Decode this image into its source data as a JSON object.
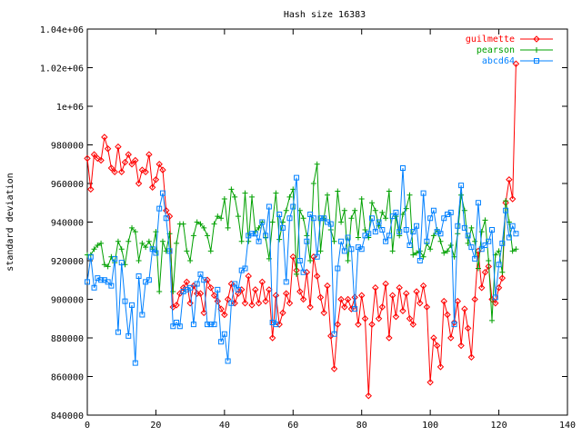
{
  "chart_data": {
    "type": "line",
    "title": "Hash size 16383",
    "xlabel": "",
    "ylabel": "standard deviation",
    "xlim": [
      0,
      140
    ],
    "ylim": [
      840000,
      1040000
    ],
    "x_ticks": [
      0,
      20,
      40,
      60,
      80,
      100,
      120,
      140
    ],
    "y_ticks": [
      840000,
      860000,
      880000,
      900000,
      920000,
      940000,
      960000,
      980000,
      1000000,
      1020000,
      1040000
    ],
    "y_tick_labels": [
      "840000",
      "860000",
      "880000",
      "900000",
      "920000",
      "940000",
      "960000",
      "980000",
      "1e+06",
      "1.02e+06",
      "1.04e+06"
    ],
    "grid": false,
    "legend_position": "top-right",
    "series": [
      {
        "name": "guilmette",
        "color": "#ff0000",
        "marker": "diamond",
        "x": [
          0,
          1,
          2,
          3,
          4,
          5,
          6,
          7,
          8,
          9,
          10,
          11,
          12,
          13,
          14,
          15,
          16,
          17,
          18,
          19,
          20,
          21,
          22,
          23,
          24,
          25,
          26,
          27,
          28,
          29,
          30,
          31,
          32,
          33,
          34,
          35,
          36,
          37,
          38,
          39,
          40,
          41,
          42,
          43,
          44,
          45,
          46,
          47,
          48,
          49,
          50,
          51,
          52,
          53,
          54,
          55,
          56,
          57,
          58,
          59,
          60,
          61,
          62,
          63,
          64,
          65,
          66,
          67,
          68,
          69,
          70,
          71,
          72,
          73,
          74,
          75,
          76,
          77,
          78,
          79,
          80,
          81,
          82,
          83,
          84,
          85,
          86,
          87,
          88,
          89,
          90,
          91,
          92,
          93,
          94,
          95,
          96,
          97,
          98,
          99,
          100,
          101,
          102,
          103,
          104,
          105,
          106,
          107,
          108,
          109,
          110,
          111,
          112,
          113,
          114,
          115,
          116,
          117,
          118,
          119,
          120,
          121,
          122,
          123,
          124,
          125
        ],
        "y": [
          973000,
          957000,
          975000,
          973000,
          972000,
          984000,
          978000,
          968000,
          966000,
          979000,
          966000,
          971000,
          975000,
          970000,
          972000,
          960000,
          967000,
          966000,
          975000,
          958000,
          962000,
          970000,
          967000,
          946000,
          943000,
          896000,
          897000,
          903000,
          906000,
          909000,
          898000,
          907000,
          903000,
          903000,
          893000,
          910000,
          906000,
          902000,
          899000,
          895000,
          892000,
          900000,
          908000,
          898000,
          903000,
          905000,
          898000,
          912000,
          897000,
          905000,
          898000,
          909000,
          899000,
          905000,
          880000,
          902000,
          887000,
          893000,
          903000,
          898000,
          922000,
          915000,
          904000,
          900000,
          914000,
          896000,
          922000,
          912000,
          901000,
          893000,
          907000,
          881000,
          864000,
          887000,
          900000,
          896000,
          900000,
          895000,
          901000,
          887000,
          902000,
          890000,
          850000,
          887000,
          906000,
          890000,
          896000,
          908000,
          880000,
          902000,
          891000,
          906000,
          894000,
          903000,
          890000,
          887000,
          904000,
          898000,
          907000,
          896000,
          857000,
          880000,
          876000,
          865000,
          899000,
          892000,
          880000,
          888000,
          899000,
          876000,
          895000,
          885000,
          870000,
          900000,
          925000,
          906000,
          914000,
          917000,
          900000,
          898000,
          906000,
          911000,
          950000,
          962000,
          952000,
          1022000
        ]
      },
      {
        "name": "pearson",
        "color": "#00a000",
        "marker": "plus",
        "x": [
          0,
          1,
          2,
          3,
          4,
          5,
          6,
          7,
          8,
          9,
          10,
          11,
          12,
          13,
          14,
          15,
          16,
          17,
          18,
          19,
          20,
          21,
          22,
          23,
          24,
          25,
          26,
          27,
          28,
          29,
          30,
          31,
          32,
          33,
          34,
          35,
          36,
          37,
          38,
          39,
          40,
          41,
          42,
          43,
          44,
          45,
          46,
          47,
          48,
          49,
          50,
          51,
          52,
          53,
          54,
          55,
          56,
          57,
          58,
          59,
          60,
          61,
          62,
          63,
          64,
          65,
          66,
          67,
          68,
          69,
          70,
          71,
          72,
          73,
          74,
          75,
          76,
          77,
          78,
          79,
          80,
          81,
          82,
          83,
          84,
          85,
          86,
          87,
          88,
          89,
          90,
          91,
          92,
          93,
          94,
          95,
          96,
          97,
          98,
          99,
          100,
          101,
          102,
          103,
          104,
          105,
          106,
          107,
          108,
          109,
          110,
          111,
          112,
          113,
          114,
          115,
          116,
          117,
          118,
          119,
          120,
          121,
          122,
          123,
          124,
          125
        ],
        "y": [
          923000,
          923000,
          926000,
          928000,
          929000,
          918000,
          917000,
          922000,
          919000,
          930000,
          926000,
          918000,
          930000,
          937000,
          935000,
          920000,
          929000,
          927000,
          930000,
          926000,
          935000,
          904000,
          930000,
          925000,
          934000,
          904000,
          929000,
          939000,
          939000,
          925000,
          920000,
          933000,
          940000,
          939000,
          937000,
          933000,
          925000,
          939000,
          943000,
          942000,
          952000,
          937000,
          957000,
          953000,
          943000,
          930000,
          955000,
          930000,
          953000,
          935000,
          937000,
          940000,
          932000,
          921000,
          940000,
          955000,
          931000,
          940000,
          946000,
          953000,
          957000,
          913000,
          946000,
          942000,
          933000,
          920000,
          960000,
          970000,
          925000,
          942000,
          954000,
          936000,
          930000,
          956000,
          940000,
          946000,
          920000,
          942000,
          946000,
          932000,
          952000,
          936000,
          932000,
          950000,
          946000,
          938000,
          945000,
          942000,
          956000,
          925000,
          943000,
          933000,
          944000,
          947000,
          954000,
          923000,
          924000,
          925000,
          922000,
          929000,
          926000,
          933000,
          936000,
          930000,
          924000,
          925000,
          928000,
          922000,
          934000,
          954000,
          946000,
          929000,
          937000,
          930000,
          916000,
          935000,
          941000,
          920000,
          889000,
          923000,
          925000,
          914000,
          951000,
          940000,
          925000,
          926000
        ]
      },
      {
        "name": "abcd64",
        "color": "#0080ff",
        "marker": "square",
        "x": [
          0,
          1,
          2,
          3,
          4,
          5,
          6,
          7,
          8,
          9,
          10,
          11,
          12,
          13,
          14,
          15,
          16,
          17,
          18,
          19,
          20,
          21,
          22,
          23,
          24,
          25,
          26,
          27,
          28,
          29,
          30,
          31,
          32,
          33,
          34,
          35,
          36,
          37,
          38,
          39,
          40,
          41,
          42,
          43,
          44,
          45,
          46,
          47,
          48,
          49,
          50,
          51,
          52,
          53,
          54,
          55,
          56,
          57,
          58,
          59,
          60,
          61,
          62,
          63,
          64,
          65,
          66,
          67,
          68,
          69,
          70,
          71,
          72,
          73,
          74,
          75,
          76,
          77,
          78,
          79,
          80,
          81,
          82,
          83,
          84,
          85,
          86,
          87,
          88,
          89,
          90,
          91,
          92,
          93,
          94,
          95,
          96,
          97,
          98,
          99,
          100,
          101,
          102,
          103,
          104,
          105,
          106,
          107,
          108,
          109,
          110,
          111,
          112,
          113,
          114,
          115,
          116,
          117,
          118,
          119,
          120,
          121,
          122,
          123,
          124,
          125
        ],
        "y": [
          909000,
          922000,
          906000,
          911000,
          910000,
          910000,
          909000,
          907000,
          921000,
          883000,
          919000,
          899000,
          881000,
          897000,
          867000,
          912000,
          892000,
          909000,
          910000,
          926000,
          924000,
          947000,
          955000,
          942000,
          925000,
          886000,
          888000,
          886000,
          904000,
          905000,
          906000,
          887000,
          908000,
          913000,
          910000,
          887000,
          887000,
          887000,
          905000,
          878000,
          882000,
          868000,
          898000,
          908000,
          905000,
          915000,
          916000,
          933000,
          934000,
          934000,
          930000,
          940000,
          933000,
          948000,
          888000,
          887000,
          944000,
          937000,
          909000,
          942000,
          948000,
          963000,
          920000,
          914000,
          930000,
          944000,
          942000,
          922000,
          942000,
          942000,
          940000,
          939000,
          882000,
          916000,
          930000,
          925000,
          932000,
          926000,
          895000,
          927000,
          926000,
          933000,
          934000,
          942000,
          935000,
          940000,
          936000,
          930000,
          933000,
          943000,
          945000,
          935000,
          968000,
          936000,
          928000,
          935000,
          938000,
          920000,
          955000,
          930000,
          942000,
          946000,
          935000,
          934000,
          942000,
          944000,
          945000,
          887000,
          938000,
          959000,
          937000,
          933000,
          927000,
          921000,
          950000,
          926000,
          928000,
          930000,
          936000,
          901000,
          918000,
          929000,
          946000,
          932000,
          938000,
          934000
        ]
      }
    ]
  }
}
